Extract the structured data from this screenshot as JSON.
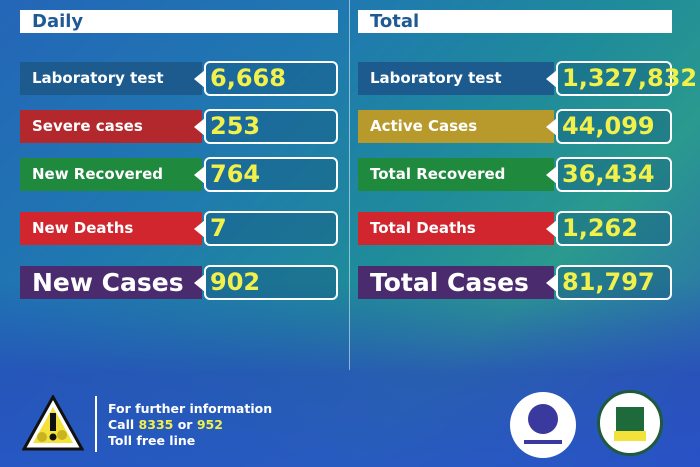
{
  "daily": {
    "title": "Daily",
    "items": [
      {
        "label": "Laboratory test",
        "value": "6,668",
        "color": "#1d5b8f"
      },
      {
        "label": "Severe cases",
        "value": "253",
        "color": "#b2282d"
      },
      {
        "label": "New Recovered",
        "value": "764",
        "color": "#1f8a3e"
      },
      {
        "label": "New Deaths",
        "value": "7",
        "color": "#d2262f"
      },
      {
        "label": "New Cases",
        "value": "902",
        "color": "#4a2c6e"
      }
    ]
  },
  "total": {
    "title": "Total",
    "items": [
      {
        "label": "Laboratory test",
        "value": "1,327,832",
        "color": "#1d5b8f"
      },
      {
        "label": "Active Cases",
        "value": "44,099",
        "color": "#b89a2c"
      },
      {
        "label": "Total Recovered",
        "value": "36,434",
        "color": "#1f8a3e"
      },
      {
        "label": "Total Deaths",
        "value": "1,262",
        "color": "#d2262f"
      },
      {
        "label": "Total Cases",
        "value": "81,797",
        "color": "#4a2c6e"
      }
    ]
  },
  "footer": {
    "line1": "For further information",
    "call": "Call",
    "num1": "8335",
    "or": "or",
    "num2": "952",
    "line3": "Toll free line",
    "warning_icon": "warning-virus-icon",
    "logos": [
      "ministry-of-health-logo",
      "public-health-institute-logo"
    ]
  }
}
